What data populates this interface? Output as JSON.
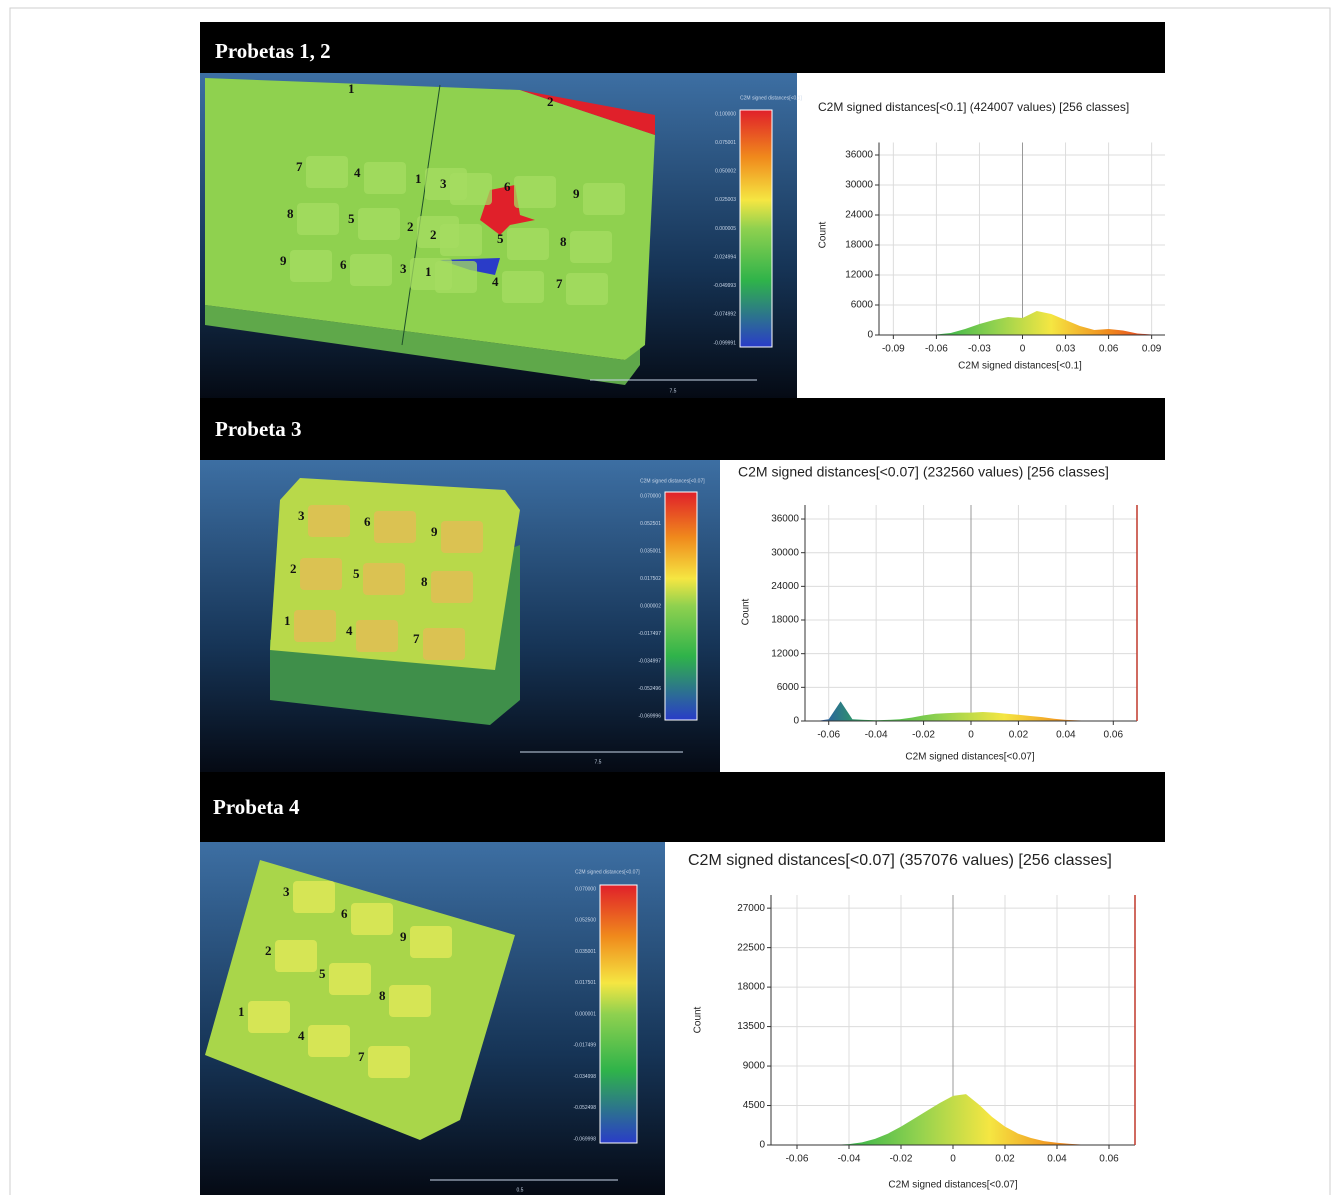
{
  "panels": [
    {
      "heading": "Probetas 1, 2",
      "scale_title": "C2M signed distances[<0.1]",
      "scale_labels": [
        "0.100000",
        "0.075001",
        "0.050002",
        "0.025003",
        "0.000005",
        "-0.024994",
        "-0.049993",
        "-0.074992",
        "-0.099991"
      ],
      "scale_bar": "7.5",
      "labels": [
        "1",
        "2",
        "7",
        "4",
        "1",
        "3",
        "6",
        "9",
        "8",
        "5",
        "2",
        "2",
        "5",
        "8",
        "9",
        "6",
        "3",
        "1",
        "4",
        "7"
      ]
    },
    {
      "heading": "Probeta 3",
      "scale_title": "C2M signed distances[<0.07]",
      "scale_labels": [
        "0.070000",
        "0.052501",
        "0.035001",
        "0.017502",
        "0.000002",
        "-0.017497",
        "-0.034997",
        "-0.052496",
        "-0.069996"
      ],
      "scale_bar": "7.5",
      "labels": [
        "3",
        "6",
        "9",
        "2",
        "5",
        "8",
        "1",
        "4",
        "7"
      ]
    },
    {
      "heading": "Probeta 4",
      "scale_title": "C2M signed distances[<0.07]",
      "scale_labels": [
        "0.070000",
        "0.052500",
        "0.035001",
        "0.017501",
        "0.000001",
        "-0.017499",
        "-0.034998",
        "-0.052498",
        "-0.069998"
      ],
      "scale_bar": "0.5",
      "labels": [
        "3",
        "6",
        "9",
        "2",
        "5",
        "8",
        "1",
        "4",
        "7"
      ]
    }
  ],
  "chart_data": [
    {
      "type": "area",
      "title": "C2M signed distances[<0.1] (424007 values)  [256 classes]",
      "x_label": "C2M signed distances[<0.1]",
      "y_label": "Count",
      "x": [
        -0.1,
        -0.09,
        -0.08,
        -0.07,
        -0.06,
        -0.05,
        -0.04,
        -0.03,
        -0.02,
        -0.01,
        0,
        0.01,
        0.02,
        0.03,
        0.04,
        0.05,
        0.06,
        0.07,
        0.08,
        0.09,
        0.1
      ],
      "values": [
        0,
        0,
        0,
        0,
        100,
        400,
        1200,
        2200,
        3000,
        3600,
        3400,
        4800,
        4200,
        3000,
        1800,
        1000,
        1200,
        900,
        300,
        100,
        0
      ],
      "xlim": [
        -0.1,
        0.1
      ],
      "xticks": [
        -0.09,
        -0.06,
        -0.03,
        0,
        0.03,
        0.06,
        0.09
      ],
      "ylim": [
        0,
        38500
      ],
      "yticks": [
        0,
        6000,
        12000,
        18000,
        24000,
        30000,
        36000
      ],
      "grid": true
    },
    {
      "type": "area",
      "title": "C2M signed distances[<0.07] (232560 values)  [256 classes]",
      "x_label": "C2M signed distances[<0.07]",
      "y_label": "Count",
      "x": [
        -0.07,
        -0.065,
        -0.06,
        -0.055,
        -0.05,
        -0.045,
        -0.04,
        -0.035,
        -0.03,
        -0.025,
        -0.02,
        -0.015,
        -0.01,
        -0.005,
        0,
        0.005,
        0.01,
        0.015,
        0.02,
        0.025,
        0.03,
        0.035,
        0.04,
        0.045,
        0.05,
        0.055,
        0.06,
        0.065,
        0.07
      ],
      "values": [
        0,
        0,
        300,
        3500,
        300,
        200,
        150,
        200,
        300,
        600,
        1000,
        1300,
        1400,
        1500,
        1500,
        1600,
        1500,
        1300,
        1100,
        900,
        700,
        400,
        200,
        100,
        50,
        0,
        0,
        0,
        0
      ],
      "xlim": [
        -0.07,
        0.07
      ],
      "xticks": [
        -0.06,
        -0.04,
        -0.02,
        0,
        0.02,
        0.04,
        0.06
      ],
      "ylim": [
        0,
        38500
      ],
      "yticks": [
        0,
        6000,
        12000,
        18000,
        24000,
        30000,
        36000
      ],
      "grid": true
    },
    {
      "type": "area",
      "title": "C2M signed distances[<0.07] (357076 values)  [256 classes]",
      "x_label": "C2M signed distances[<0.07]",
      "y_label": "Count",
      "x": [
        -0.07,
        -0.065,
        -0.06,
        -0.055,
        -0.05,
        -0.045,
        -0.04,
        -0.035,
        -0.03,
        -0.025,
        -0.02,
        -0.015,
        -0.01,
        -0.005,
        0,
        0.005,
        0.01,
        0.015,
        0.02,
        0.025,
        0.03,
        0.035,
        0.04,
        0.045,
        0.05,
        0.055,
        0.06,
        0.065,
        0.07
      ],
      "values": [
        0,
        0,
        0,
        0,
        0,
        20,
        100,
        300,
        700,
        1300,
        2100,
        3000,
        3900,
        4800,
        5600,
        5800,
        4600,
        3200,
        2100,
        1300,
        800,
        450,
        250,
        120,
        50,
        20,
        0,
        0,
        0
      ],
      "xlim": [
        -0.07,
        0.07
      ],
      "xticks": [
        -0.06,
        -0.04,
        -0.02,
        0,
        0.02,
        0.04,
        0.06
      ],
      "ylim": [
        0,
        28500
      ],
      "yticks": [
        0,
        4500,
        9000,
        13500,
        18000,
        22500,
        27000
      ],
      "grid": true
    }
  ]
}
